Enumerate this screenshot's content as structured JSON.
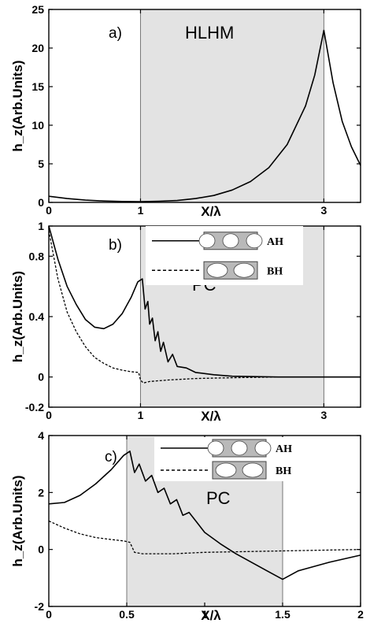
{
  "chart_data": [
    {
      "panel": "a",
      "panel_label": "a)",
      "type": "line",
      "region_label": "HLHM",
      "xlabel": "X/λ",
      "ylabel": "h_z(Arb.Units)",
      "xlim": [
        0,
        3.4
      ],
      "ylim": [
        0,
        25
      ],
      "xticks": [
        0,
        1,
        3
      ],
      "xtick_labels": [
        "0",
        "1",
        "3"
      ],
      "yticks": [
        0,
        5,
        10,
        15,
        20,
        25
      ],
      "ytick_labels": [
        "0",
        "5",
        "10",
        "15",
        "20",
        "25"
      ],
      "shaded_region": [
        1,
        3
      ],
      "legend": null,
      "series": [
        {
          "style": "solid",
          "x": [
            0,
            0.2,
            0.4,
            0.6,
            0.8,
            1.0,
            1.2,
            1.4,
            1.6,
            1.8,
            2.0,
            2.2,
            2.4,
            2.6,
            2.8,
            2.9,
            3.0,
            3.1,
            3.2,
            3.3,
            3.4
          ],
          "y": [
            0.8,
            0.5,
            0.3,
            0.18,
            0.12,
            0.1,
            0.15,
            0.25,
            0.5,
            0.9,
            1.6,
            2.7,
            4.5,
            7.5,
            12.5,
            16.5,
            22.3,
            15.5,
            10.5,
            7.2,
            4.8
          ]
        }
      ]
    },
    {
      "panel": "b",
      "panel_label": "b)",
      "type": "line",
      "region_label": "PC",
      "xlabel": "X/λ",
      "ylabel": "h_z(Arb.Units)",
      "xlim": [
        0,
        3.4
      ],
      "ylim": [
        -0.2,
        1
      ],
      "xticks": [
        0,
        1,
        3
      ],
      "xtick_labels": [
        "0",
        "1",
        "3"
      ],
      "yticks": [
        -0.2,
        0,
        0.4,
        0.8,
        1
      ],
      "ytick_labels": [
        "-0.2",
        "0",
        "0.4",
        "0.8",
        "1"
      ],
      "shaded_region": [
        1,
        3
      ],
      "legend": [
        {
          "label": "AH",
          "style": "solid"
        },
        {
          "label": "BH",
          "style": "dashed"
        }
      ],
      "series": [
        {
          "name": "AH",
          "style": "solid",
          "x": [
            0,
            0.1,
            0.2,
            0.3,
            0.4,
            0.5,
            0.6,
            0.7,
            0.8,
            0.9,
            0.97,
            1.02,
            1.05,
            1.08,
            1.1,
            1.13,
            1.16,
            1.19,
            1.22,
            1.25,
            1.3,
            1.35,
            1.4,
            1.5,
            1.6,
            1.8,
            2.0,
            2.5,
            3.0,
            3.4
          ],
          "y": [
            1.0,
            0.78,
            0.6,
            0.48,
            0.38,
            0.33,
            0.32,
            0.35,
            0.42,
            0.53,
            0.63,
            0.65,
            0.45,
            0.5,
            0.35,
            0.39,
            0.24,
            0.3,
            0.17,
            0.23,
            0.1,
            0.15,
            0.07,
            0.06,
            0.03,
            0.015,
            0.005,
            0,
            0,
            0
          ]
        },
        {
          "name": "BH",
          "style": "dashed",
          "x": [
            0,
            0.1,
            0.2,
            0.3,
            0.4,
            0.5,
            0.6,
            0.7,
            0.8,
            0.9,
            0.98,
            1.0,
            1.03,
            1.1,
            1.3,
            1.6,
            2.0,
            2.5,
            3.0,
            3.4
          ],
          "y": [
            0.97,
            0.65,
            0.43,
            0.3,
            0.2,
            0.13,
            0.09,
            0.06,
            0.045,
            0.035,
            0.03,
            -0.02,
            -0.04,
            -0.03,
            -0.02,
            -0.01,
            -0.005,
            0,
            0,
            0
          ]
        }
      ]
    },
    {
      "panel": "c",
      "panel_label": "c)",
      "type": "line",
      "region_label": "PC",
      "xlabel": "X/λ",
      "ylabel": "h_z(Arb.Units)",
      "xlim": [
        0,
        2
      ],
      "ylim": [
        -2,
        4
      ],
      "xticks": [
        0,
        0.5,
        1,
        1.5,
        2
      ],
      "xtick_labels": [
        "0",
        "0.5",
        "1",
        "1.5",
        "2"
      ],
      "yticks": [
        -2,
        0,
        2,
        4
      ],
      "ytick_labels": [
        "-2",
        "0",
        "2",
        "4"
      ],
      "shaded_region": [
        0.5,
        1.5
      ],
      "legend": [
        {
          "label": "AH",
          "style": "solid"
        },
        {
          "label": "BH",
          "style": "dashed"
        }
      ],
      "series": [
        {
          "name": "AH",
          "style": "solid",
          "x": [
            0,
            0.1,
            0.2,
            0.3,
            0.4,
            0.48,
            0.52,
            0.55,
            0.58,
            0.62,
            0.66,
            0.7,
            0.74,
            0.78,
            0.82,
            0.86,
            0.9,
            0.95,
            1.0,
            1.1,
            1.2,
            1.3,
            1.4,
            1.5,
            1.6,
            1.8,
            2.0
          ],
          "y": [
            1.6,
            1.65,
            1.9,
            2.3,
            2.8,
            3.3,
            3.45,
            2.7,
            3.0,
            2.4,
            2.6,
            2.0,
            2.15,
            1.6,
            1.75,
            1.2,
            1.3,
            0.95,
            0.6,
            0.2,
            -0.15,
            -0.45,
            -0.75,
            -1.05,
            -0.75,
            -0.45,
            -0.2
          ]
        },
        {
          "name": "BH",
          "style": "dashed",
          "x": [
            0,
            0.1,
            0.2,
            0.3,
            0.4,
            0.48,
            0.52,
            0.55,
            0.6,
            0.8,
            1.0,
            1.2,
            1.5,
            1.8,
            2.0
          ],
          "y": [
            1.0,
            0.75,
            0.55,
            0.42,
            0.35,
            0.3,
            0.25,
            -0.1,
            -0.15,
            -0.15,
            -0.1,
            -0.08,
            -0.05,
            -0.02,
            0
          ]
        }
      ]
    }
  ]
}
